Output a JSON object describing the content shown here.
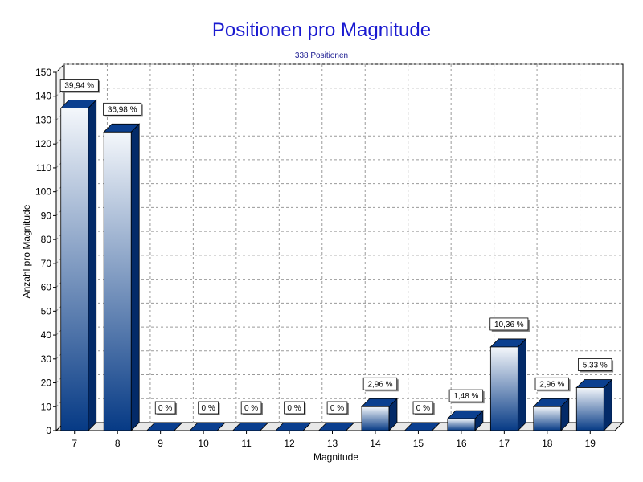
{
  "chart_data": {
    "type": "bar",
    "title": "Positionen pro Magnitude",
    "subtitle": "338 Positionen",
    "xlabel": "Magnitude",
    "ylabel": "Anzahl pro Magnitude",
    "categories": [
      "7",
      "8",
      "9",
      "10",
      "11",
      "12",
      "13",
      "14",
      "15",
      "16",
      "17",
      "18",
      "19"
    ],
    "values": [
      135,
      125,
      0,
      0,
      0,
      0,
      0,
      10,
      0,
      5,
      35,
      10,
      18
    ],
    "data_labels": [
      "39,94 %",
      "36,98 %",
      "0 %",
      "0 %",
      "0 %",
      "0 %",
      "0 %",
      "2,96 %",
      "0 %",
      "1,48 %",
      "10,36 %",
      "2,96 %",
      "5,33 %"
    ],
    "yticks": [
      0,
      10,
      20,
      30,
      40,
      50,
      60,
      70,
      80,
      90,
      100,
      110,
      120,
      130,
      140,
      150
    ],
    "ylim": [
      0,
      150
    ],
    "grid": true,
    "legend": "none",
    "colors": {
      "bar_top_light": "#f4f7fb",
      "bar_bottom_dark": "#063a85",
      "bar_side": "#032a68",
      "bar_cap": "#0b3f8f",
      "grid": "#9a9a9a",
      "title": "#1a1ad0"
    }
  }
}
